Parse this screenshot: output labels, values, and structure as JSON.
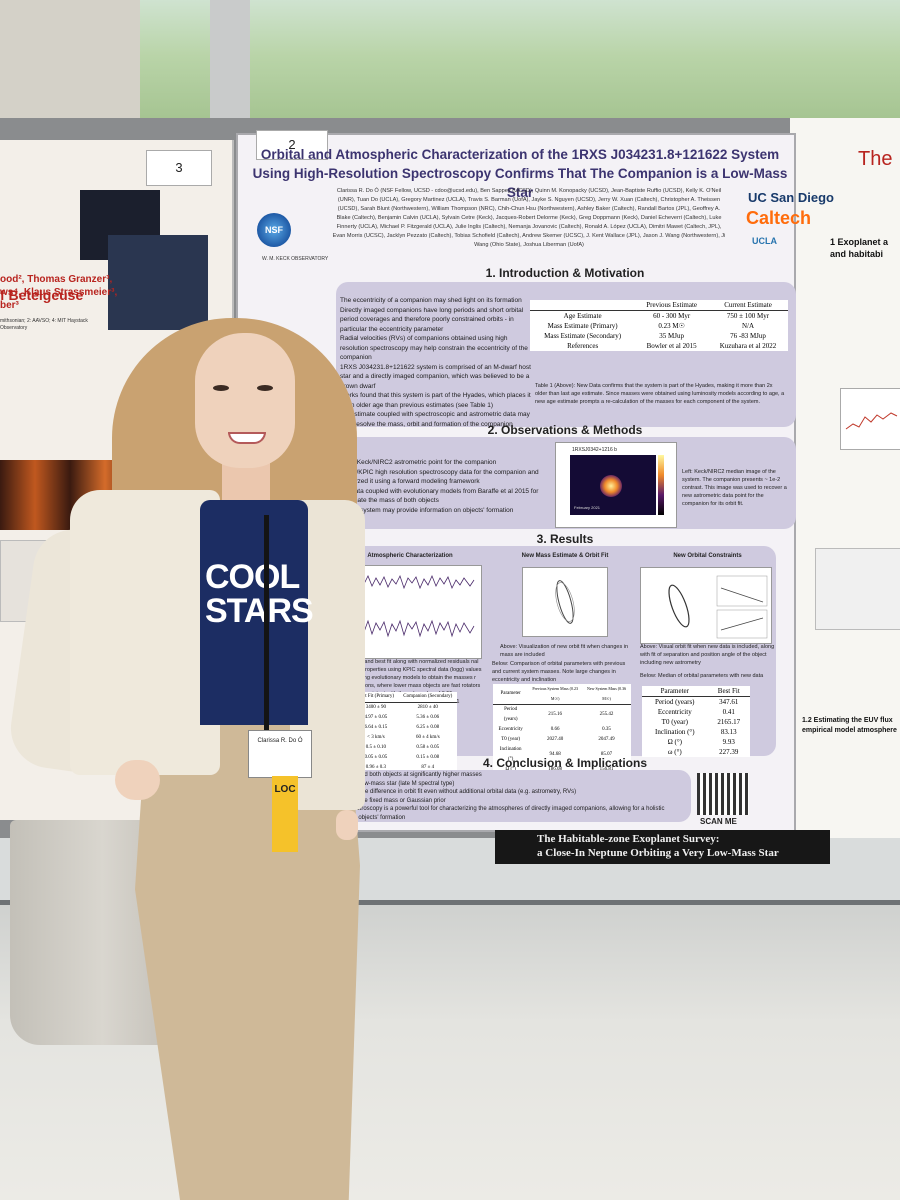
{
  "left_poster": {
    "number": "3",
    "title": "f Betelgeuse",
    "authors": [
      "ood², Thomas Granzer³,",
      "ws⁴, Klaus Strassmeier³,",
      "ber³"
    ],
    "affiliations": "mithsonian; 2: AAVSO; 4: MIT Haystack Observatory"
  },
  "main_poster": {
    "number": "2",
    "title": "Orbital and Atmospheric Characterization of the 1RXS J034231.8+121622 System Using High-Resolution Spectroscopy Confirms That The Companion is a Low-Mass Star",
    "authors": "Clarissa R. Do Ó (NSF Fellow, UCSD - cdoo@ucsd.edu), Ben Sappey (UCSD), Quinn M. Konopacky (UCSD), Jean-Baptiste Ruffio (UCSD), Kelly K. O'Neil (UNR), Tuan Do (UCLA), Gregory Martinez (UCLA), Travis S. Barman (UofA), Jayke S. Nguyen (UCSD), Jerry W. Xuan (Caltech), Christopher A. Theissen (UCSD), Sarah Blunt (Northwestern), William Thompson (NRC), Chih-Chun Hsu (Northwestern), Ashley Baker (Caltech), Randall Bartos (JPL), Geoffrey A. Blake (Caltech), Benjamin Calvin (UCLA), Sylvain Cetre (Keck), Jacques-Robert Delorme (Keck), Greg Doppmann (Keck), Daniel Echeverri (Caltech), Luke Finnerty (UCLA), Michael P. Fitzgerald (UCLA), Julie Inglis (Caltech), Nemanja Jovanovic (Caltech), Ronald A. López (UCLA), Dimitri Mawet (Caltech, JPL), Evan Morris (UCSC), Jacklyn Pezzato (Caltech), Tobias Schofield (Caltech), Andrew Skemer (UCSC), J. Kent Wallace (JPL), Jason J. Wang (Northwestern), Ji Wang (Ohio State), Joshua Liberman (UofA)",
    "logos": {
      "nsf": "NSF",
      "keck": "W. M. KECK OBSERVATORY",
      "ucsd": "UC San Diego",
      "caltech": "Caltech",
      "ucla": "UCLA"
    },
    "sections": {
      "intro": {
        "heading": "1. Introduction & Motivation",
        "bullets": [
          "The eccentricity of a companion may shed light on its formation",
          "Directly imaged companions have long periods and short orbital period coverages and therefore poorly constrained orbits - in particular the eccentricity parameter",
          "Radial velocities (RVs) of companions obtained using high resolution spectroscopy may help constrain the eccentricity of the companion",
          "1RXS J034231.8+121622 system is comprised of an M-dwarf host star and a directly imaged companion, which was believed to be a brown dwarf",
          "Works found that this system is part of the Hyades, which places it at an older age than previous estimates (see Table 1)",
          "RV estimate coupled with spectroscopic and astrometric data may help resolve the mass, orbit and formation of the companion"
        ],
        "table": {
          "columns": [
            "",
            "Previous Estimate",
            "Current Estimate"
          ],
          "rows": [
            [
              "Age Estimate",
              "60 - 300 Myr",
              "750 ± 100 Myr"
            ],
            [
              "Mass Estimate (Primary)",
              "0.23 M☉",
              "N/A"
            ],
            [
              "Mass Estimate (Secondary)",
              "35 MJup",
              "76 -83 MJup"
            ],
            [
              "References",
              "Bowler et al 2015",
              "Kuzuhara et al 2022"
            ]
          ],
          "caption": "Table 1 (Above): New Data confirms that the system is part of the Hyades, making it more than 2x older than last age estimate. Since masses were obtained using luminosity models according to age, a new age estimate prompts a re-calculation of the masses for each component of the system."
        }
      },
      "observations": {
        "heading": "2. Observations & Methods",
        "bullets": [
          "New Keck/NIRC2 astrometric point for the companion",
          "Keck/KPIC high resolution spectroscopy data for the companion and analyzed it using a forward modeling framework",
          "All data coupled with evolutionary models from Baraffe et al 2015 for estimate the mass of both objects",
          "of the system may provide information on objects' formation"
        ],
        "image_label": "1RXSJ0342+1216 b",
        "image_date": "February 2021",
        "caption": "Left: Keck/NIRC2 median image of the system. The companion presents ~ 1e-2 contrast. This image was used to recover a new astrometric data point for the companion for its orbit fit."
      },
      "results": {
        "heading": "3. Results",
        "panels": [
          "Atmospheric Characterization",
          "New Mass Estimate & Orbit Fit",
          "New Orbital Constraints"
        ],
        "atm_caption": "tral data and best fit along with normalized residuals nal system properties using KPIC spectral data (logg) values used along evolutionary models to obtain the masses r expectations, where lower mass objects are fast rotators ratio is consistent with the solar value of 0.55 s consistent with the Hyades values of 0.11 - 0.21",
        "orbit_caption_above": "Above: Visualization of new orbit fit when changes in mass are included",
        "orbit_caption_below": "Below: Comparison of orbital parameters with previous and current system masses. Note large changes in eccentricity and inclination",
        "constraints_caption_above": "Above: Visual orbit fit when new data is included, along with fit of separation and position angle of the object including new astrometry",
        "constraints_caption_below": "Below: Median of orbital parameters with new data",
        "atm_table": {
          "columns": [
            "",
            "Best Fit (Primary)",
            "Companion (Secondary)"
          ],
          "rows": [
            [
              "",
              "3400 ± 90",
              "2810 ± 40"
            ],
            [
              "",
              "4.97 ± 0.05",
              "5.36 ± 0.06"
            ],
            [
              "",
              "6.64 ± 0.15",
              "6.25 ± 0.08"
            ],
            [
              "",
              "< 3 km/s",
              "60 ± 4 km/s"
            ],
            [
              "",
              "0.5 ± 0.10",
              "0.58 ± 0.05"
            ],
            [
              "",
              "0.05 ± 0.05",
              "0.15 ± 0.08"
            ],
            [
              "",
              "0.96 ± 0.3",
              "87 ± 4"
            ],
            [
              "",
              "0.32 ± 0.15",
              "0.18 ± 0.5"
            ]
          ]
        },
        "orbit_table": {
          "columns": [
            "Parameter",
            "Previous System Mass (0.23 M☉)",
            "New System Mass (0.36 M☉)"
          ],
          "rows": [
            [
              "Period (years)",
              "215.16",
              "255.42"
            ],
            [
              "Eccentricity",
              "0.66",
              "0.35"
            ],
            [
              "T0 (year)",
              "2027.40",
              "2047.49"
            ],
            [
              "Inclination (°)",
              "94.68",
              "85.07"
            ],
            [
              "Ω (°)",
              "186.08",
              "156.81"
            ],
            [
              "ω (°)",
              "186.00",
              "215.00"
            ]
          ]
        },
        "fit_table": {
          "columns": [
            "Parameter",
            "Best Fit"
          ],
          "rows": [
            [
              "Period (years)",
              "347.61"
            ],
            [
              "Eccentricity",
              "0.41"
            ],
            [
              "T0 (year)",
              "2165.17"
            ],
            [
              "Inclination (°)",
              "83.13"
            ],
            [
              "Ω (°)",
              "9.93"
            ],
            [
              "ω (°)",
              "227.39"
            ]
          ]
        }
      },
      "conclusion": {
        "heading": "4. Conclusion & Implications",
        "bullets": [
          "placed both objects at significantly higher masses",
          "y a low-mass star (late M spectral type)",
          "a huge difference in orbit fit even without additional orbital data (e.g. astrometry, RVs)",
          "ssume fixed mass or Gaussian prior",
          "pectroscopy is a powerful tool for characterizing the atmospheres of directly imaged companions, allowing for a holistic",
          "an objects' formation"
        ],
        "qr_label": "SCAN ME"
      }
    }
  },
  "right_poster": {
    "title": "The",
    "section1": "1   Exoplanet a and habitabi",
    "section2": "1.2   Estimating the EUV flux empirical model atmosphere"
  },
  "badge": {
    "name": "Clarissa R. Do Ó",
    "ribbon": "LOC"
  },
  "shirt": {
    "text": "COOL STARS"
  },
  "banner": {
    "line1": "The Habitable-zone Exoplanet Survey:",
    "line2": "a Close-In Neptune Orbiting a Very Low-Mass Star"
  }
}
